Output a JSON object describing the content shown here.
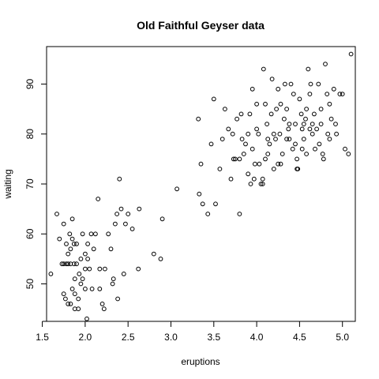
{
  "chart_data": {
    "type": "scatter",
    "title": "Old Faithful Geyser data",
    "xlabel": "eruptions",
    "ylabel": "waiting",
    "xlim": [
      1.55,
      5.15
    ],
    "ylim": [
      42.5,
      97.5
    ],
    "xticks": [
      1.5,
      2.0,
      2.5,
      3.0,
      3.5,
      4.0,
      4.5,
      5.0
    ],
    "xtick_labels": [
      "1.5",
      "2.0",
      "2.5",
      "3.0",
      "3.5",
      "4.0",
      "4.5",
      "5.0"
    ],
    "yticks": [
      50,
      60,
      70,
      80,
      90
    ],
    "ytick_labels": [
      "50",
      "60",
      "70",
      "80",
      "90"
    ],
    "grid": false,
    "legend": "none",
    "points": [
      [
        1.6,
        52
      ],
      [
        1.67,
        64
      ],
      [
        1.7,
        59
      ],
      [
        1.73,
        54
      ],
      [
        1.75,
        54
      ],
      [
        1.75,
        48
      ],
      [
        1.75,
        62
      ],
      [
        1.77,
        47
      ],
      [
        1.78,
        54
      ],
      [
        1.78,
        58
      ],
      [
        1.8,
        46
      ],
      [
        1.8,
        54
      ],
      [
        1.8,
        56
      ],
      [
        1.82,
        60
      ],
      [
        1.83,
        46
      ],
      [
        1.83,
        54
      ],
      [
        1.83,
        57
      ],
      [
        1.85,
        63
      ],
      [
        1.85,
        59
      ],
      [
        1.85,
        49
      ],
      [
        1.87,
        54
      ],
      [
        1.87,
        58
      ],
      [
        1.88,
        51
      ],
      [
        1.88,
        48
      ],
      [
        1.88,
        45
      ],
      [
        1.9,
        54
      ],
      [
        1.9,
        58
      ],
      [
        1.92,
        45
      ],
      [
        1.92,
        47
      ],
      [
        1.93,
        52
      ],
      [
        1.95,
        50
      ],
      [
        1.95,
        55
      ],
      [
        1.97,
        51
      ],
      [
        1.97,
        60
      ],
      [
        2.0,
        53
      ],
      [
        2.0,
        56
      ],
      [
        2.0,
        49
      ],
      [
        2.02,
        43
      ],
      [
        2.03,
        55
      ],
      [
        2.03,
        58
      ],
      [
        2.05,
        53
      ],
      [
        2.07,
        60
      ],
      [
        2.08,
        49
      ],
      [
        2.1,
        57
      ],
      [
        2.12,
        60
      ],
      [
        2.15,
        67
      ],
      [
        2.17,
        53
      ],
      [
        2.17,
        49
      ],
      [
        2.2,
        46
      ],
      [
        2.22,
        45
      ],
      [
        2.23,
        53
      ],
      [
        2.27,
        60
      ],
      [
        2.3,
        57
      ],
      [
        2.32,
        50
      ],
      [
        2.33,
        51
      ],
      [
        2.35,
        62
      ],
      [
        2.37,
        64
      ],
      [
        2.38,
        47
      ],
      [
        2.4,
        71
      ],
      [
        2.42,
        65
      ],
      [
        2.45,
        52
      ],
      [
        2.47,
        62
      ],
      [
        2.5,
        64
      ],
      [
        2.55,
        61
      ],
      [
        2.62,
        53
      ],
      [
        2.63,
        65
      ],
      [
        2.8,
        56
      ],
      [
        2.88,
        55
      ],
      [
        2.9,
        63
      ],
      [
        3.07,
        69
      ],
      [
        3.32,
        83
      ],
      [
        3.33,
        68
      ],
      [
        3.35,
        74
      ],
      [
        3.37,
        66
      ],
      [
        3.43,
        64
      ],
      [
        3.47,
        78
      ],
      [
        3.5,
        87
      ],
      [
        3.52,
        66
      ],
      [
        3.57,
        73
      ],
      [
        3.6,
        79
      ],
      [
        3.63,
        85
      ],
      [
        3.67,
        81
      ],
      [
        3.7,
        71
      ],
      [
        3.72,
        80
      ],
      [
        3.75,
        75
      ],
      [
        3.77,
        83
      ],
      [
        3.8,
        64
      ],
      [
        3.8,
        75
      ],
      [
        3.82,
        84
      ],
      [
        3.83,
        79
      ],
      [
        3.85,
        76
      ],
      [
        3.87,
        78
      ],
      [
        3.9,
        80
      ],
      [
        3.92,
        84
      ],
      [
        3.93,
        70
      ],
      [
        3.95,
        89
      ],
      [
        3.97,
        71
      ],
      [
        3.98,
        74
      ],
      [
        4.0,
        86
      ],
      [
        4.02,
        80
      ],
      [
        4.03,
        74
      ],
      [
        4.05,
        70
      ],
      [
        4.07,
        71
      ],
      [
        4.08,
        93
      ],
      [
        4.1,
        75
      ],
      [
        4.12,
        82
      ],
      [
        4.13,
        76
      ],
      [
        4.15,
        78
      ],
      [
        4.17,
        84
      ],
      [
        4.18,
        91
      ],
      [
        4.2,
        73
      ],
      [
        4.22,
        79
      ],
      [
        4.23,
        85
      ],
      [
        4.25,
        74
      ],
      [
        4.27,
        80
      ],
      [
        4.28,
        86
      ],
      [
        4.3,
        76
      ],
      [
        4.32,
        83
      ],
      [
        4.33,
        90
      ],
      [
        4.35,
        85
      ],
      [
        4.37,
        81
      ],
      [
        4.38,
        79
      ],
      [
        4.4,
        90
      ],
      [
        4.42,
        77
      ],
      [
        4.43,
        88
      ],
      [
        4.45,
        82
      ],
      [
        4.47,
        75
      ],
      [
        4.48,
        73
      ],
      [
        4.5,
        87
      ],
      [
        4.52,
        84
      ],
      [
        4.53,
        81
      ],
      [
        4.55,
        82
      ],
      [
        4.57,
        83
      ],
      [
        4.58,
        76
      ],
      [
        4.6,
        93
      ],
      [
        4.62,
        88
      ],
      [
        4.63,
        90
      ],
      [
        4.65,
        80
      ],
      [
        4.67,
        84
      ],
      [
        4.68,
        77
      ],
      [
        4.7,
        81
      ],
      [
        4.72,
        90
      ],
      [
        4.73,
        78
      ],
      [
        4.75,
        82
      ],
      [
        4.77,
        76
      ],
      [
        4.78,
        75
      ],
      [
        4.8,
        94
      ],
      [
        4.82,
        88
      ],
      [
        4.83,
        80
      ],
      [
        4.85,
        86
      ],
      [
        4.87,
        83
      ],
      [
        4.9,
        89
      ],
      [
        4.92,
        82
      ],
      [
        4.93,
        80
      ],
      [
        4.97,
        88
      ],
      [
        5.0,
        88
      ],
      [
        5.03,
        77
      ],
      [
        5.07,
        76
      ],
      [
        5.1,
        96
      ],
      [
        4.1,
        86
      ],
      [
        4.0,
        81
      ],
      [
        3.95,
        77
      ],
      [
        4.2,
        80
      ],
      [
        4.35,
        79
      ],
      [
        4.45,
        78
      ],
      [
        4.55,
        79
      ],
      [
        4.65,
        82
      ],
      [
        4.75,
        85
      ],
      [
        4.85,
        79
      ],
      [
        4.25,
        89
      ],
      [
        4.13,
        79
      ],
      [
        4.38,
        82
      ],
      [
        4.53,
        77
      ],
      [
        4.58,
        85
      ],
      [
        3.73,
        75
      ],
      [
        3.9,
        72
      ],
      [
        4.07,
        70
      ],
      [
        4.28,
        74
      ],
      [
        4.47,
        73
      ],
      [
        4.62,
        81
      ]
    ]
  }
}
